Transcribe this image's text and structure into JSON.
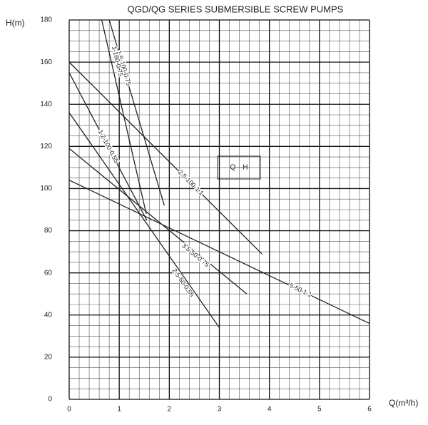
{
  "chart_data": {
    "type": "line",
    "title": "QGD/QG   SERIES SUBMERSIBLE SCREW  PUMPS",
    "x_label": "Q(m³/h)",
    "y_label": "H(m)",
    "annotation": "Q—H",
    "xlim": [
      0,
      6
    ],
    "xticks": [
      0,
      1,
      2,
      3,
      4,
      5,
      6
    ],
    "ylim": [
      0,
      180
    ],
    "yticks": [
      0,
      20,
      40,
      60,
      80,
      100,
      120,
      140,
      160,
      180
    ],
    "grid": true,
    "color": "#222222",
    "series": [
      {
        "name": "1.8-100-0.75",
        "x": [
          0.8,
          1.9
        ],
        "values": [
          180,
          92
        ]
      },
      {
        "name": "1-160-0.75",
        "x": [
          0.65,
          1.54
        ],
        "values": [
          180,
          88
        ]
      },
      {
        "name": "1.2-100-0.55",
        "x": [
          0,
          1.55
        ],
        "values": [
          155,
          85
        ]
      },
      {
        "name": "2.5-100-1.1",
        "x": [
          0,
          3.85
        ],
        "values": [
          160,
          69
        ]
      },
      {
        "name": "3.5-50-0.75",
        "x": [
          0,
          3.55
        ],
        "values": [
          119,
          50
        ]
      },
      {
        "name": "2.5-50-0.55",
        "x": [
          0,
          3
        ],
        "values": [
          136,
          34
        ]
      },
      {
        "name": "5-50-1.1",
        "x": [
          0,
          6
        ],
        "values": [
          104,
          36
        ]
      }
    ]
  }
}
